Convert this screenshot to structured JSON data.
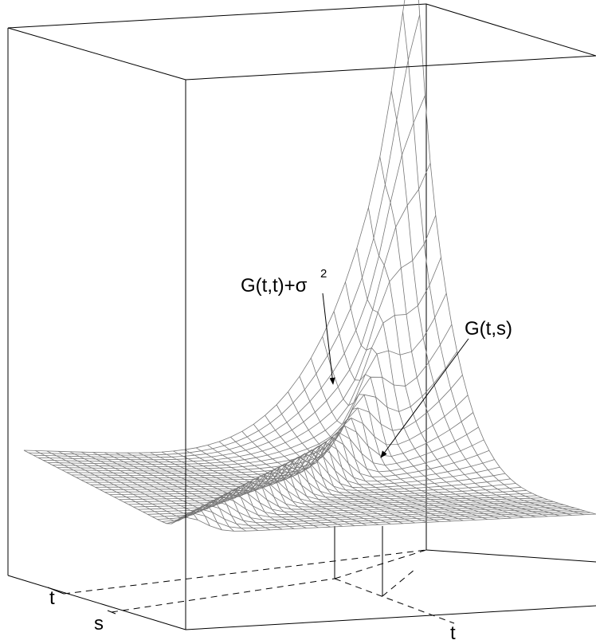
{
  "annotations": [
    {
      "text": "G(t,t)+σ",
      "superscript": "2"
    },
    {
      "text": "G(t,s)"
    }
  ],
  "axis_labels": [
    "t",
    "s",
    "t"
  ]
}
